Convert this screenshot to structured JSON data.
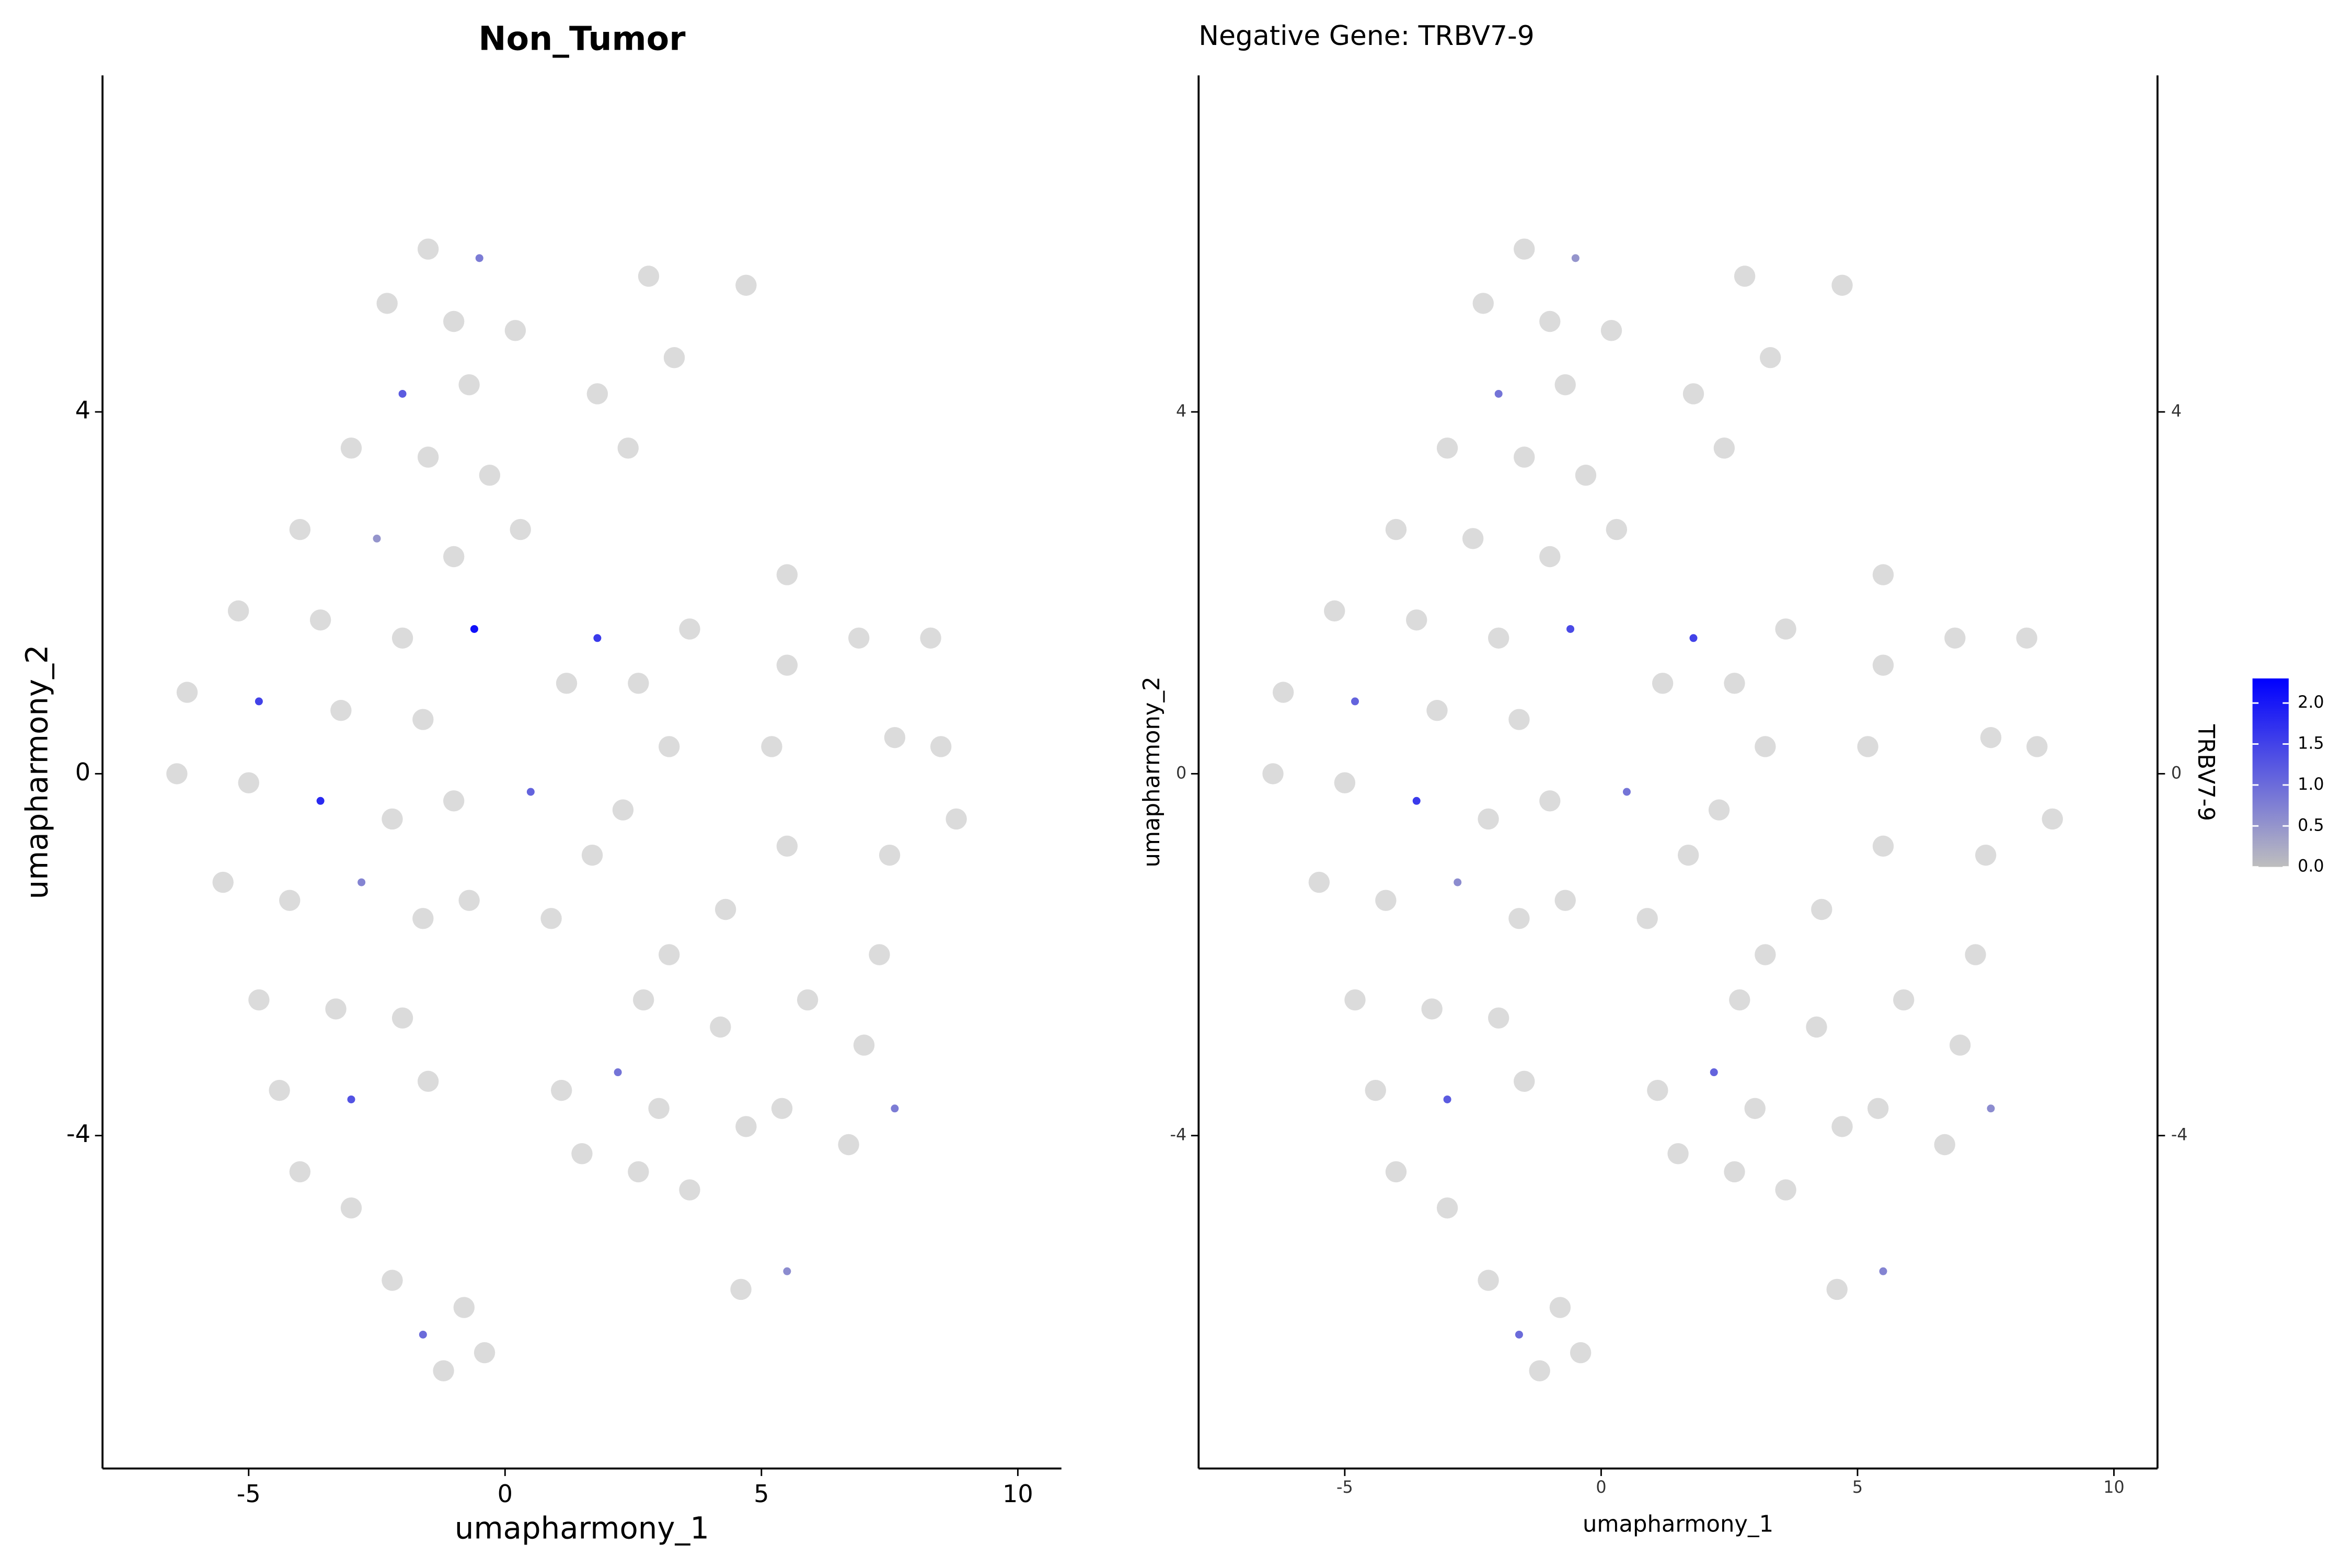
{
  "chart_data": [
    {
      "type": "scatter",
      "title": "Non_Tumor",
      "xlabel": "umapharmony_1",
      "ylabel": "umapharmony_2",
      "xlim": [
        -7.85,
        10.85
      ],
      "ylim": [
        -7.68,
        7.72
      ],
      "xticks": [
        -5,
        0,
        5,
        10
      ],
      "yticks": [
        -4,
        0,
        4
      ],
      "colors": [
        "#bebebe",
        "#0000ff"
      ],
      "colorlim": [
        0,
        2.3
      ],
      "right_axis": false,
      "x": [
        -1.5,
        -0.5,
        -2.3,
        -1.0,
        0.2,
        -2.0,
        -0.7,
        -3.0,
        -1.5,
        -0.3,
        -4.0,
        -2.5,
        -1.0,
        0.3,
        -5.2,
        -3.6,
        -2.0,
        -0.6,
        -6.2,
        -4.8,
        -3.2,
        -1.6,
        -6.4,
        -5.0,
        -3.6,
        -2.2,
        -1.0,
        -5.5,
        -4.2,
        -2.8,
        -1.6,
        -4.8,
        -3.3,
        -2.0,
        -4.4,
        -3.0,
        -1.5,
        -4.0,
        -3.0,
        -2.2,
        -1.6,
        -0.8,
        -1.2,
        -0.4,
        1.8,
        1.2,
        2.6,
        3.2,
        0.5,
        2.3,
        1.7,
        -0.7,
        0.9,
        3.6,
        2.7,
        2.2,
        3.0,
        1.5,
        2.6,
        3.6,
        1.1,
        3.2,
        2.8,
        4.7,
        2.4,
        3.3,
        1.8,
        5.5,
        5.5,
        5.5,
        5.2,
        5.9,
        5.4,
        4.7,
        5.5,
        4.6,
        4.3,
        4.2,
        8.3,
        8.5,
        7.6,
        8.8,
        7.5,
        6.9,
        7.6,
        7.0,
        6.7,
        7.3
      ],
      "values": [
        5.8,
        5.7,
        5.2,
        5.0,
        4.9,
        4.2,
        4.3,
        3.6,
        3.5,
        3.3,
        2.7,
        2.6,
        2.4,
        2.7,
        1.8,
        1.7,
        1.5,
        1.6,
        0.9,
        0.8,
        0.7,
        0.6,
        0.0,
        -0.1,
        -0.3,
        -0.5,
        -0.3,
        -1.2,
        -1.4,
        -1.2,
        -1.6,
        -2.5,
        -2.6,
        -2.7,
        -3.5,
        -3.6,
        -3.4,
        -4.4,
        -4.8,
        -5.6,
        -6.2,
        -5.9,
        -6.6,
        -6.4,
        1.5,
        1.0,
        1.0,
        0.3,
        -0.2,
        -0.4,
        -0.9,
        -1.4,
        -1.6,
        1.6,
        -2.5,
        -3.3,
        -3.7,
        -4.2,
        -4.4,
        -4.6,
        -3.5,
        -2.0,
        5.5,
        5.4,
        3.6,
        4.6,
        4.2,
        2.2,
        1.2,
        -0.8,
        0.3,
        -2.5,
        -3.7,
        -3.9,
        -5.5,
        -5.7,
        -1.5,
        -2.8,
        1.5,
        0.3,
        0.4,
        -0.5,
        -0.9,
        1.5,
        -3.7,
        -3.0,
        -4.1,
        -2.0
      ],
      "expression": [
        0,
        0.8,
        0,
        0,
        0,
        1.2,
        0,
        0,
        0,
        0,
        0,
        0.5,
        0,
        0,
        0,
        0,
        0,
        2.1,
        0,
        1.5,
        0,
        0,
        0,
        0,
        1.8,
        0,
        0,
        0,
        0,
        0.7,
        0,
        0,
        0,
        0,
        0,
        1.3,
        0,
        0,
        0,
        0,
        1.0,
        0,
        0,
        0,
        1.6,
        0,
        0,
        0,
        1.1,
        0,
        0,
        0,
        0,
        0,
        0,
        0.9,
        0,
        0,
        0,
        0,
        0,
        0,
        0,
        0,
        0,
        0,
        0,
        0,
        0,
        0,
        0,
        0,
        0,
        0,
        0.6,
        0,
        0,
        0,
        0,
        0,
        0,
        0,
        0,
        0,
        0.8,
        0,
        0,
        0
      ]
    },
    {
      "type": "scatter",
      "title": "Negative Gene: TRBV7-9",
      "xlabel": "umapharmony_1",
      "ylabel": "umapharmony_2",
      "xlim": [
        -7.85,
        10.85
      ],
      "ylim": [
        -7.68,
        7.72
      ],
      "xticks": [
        -5,
        0,
        5,
        10
      ],
      "yticks": [
        -4,
        0,
        4
      ],
      "colors": [
        "#bebebe",
        "#0000ff"
      ],
      "colorlim": [
        0,
        2.3
      ],
      "right_axis": true,
      "legend": {
        "title": "TRBV7-9",
        "ticks": [
          {
            "value": 0,
            "label": "0.0"
          },
          {
            "value": 0.5,
            "label": "0.5"
          },
          {
            "value": 1,
            "label": "1.0"
          },
          {
            "value": 1.5,
            "label": "1.5"
          },
          {
            "value": 2,
            "label": "2.0"
          }
        ]
      },
      "x": [
        -1.5,
        -0.5,
        -2.3,
        -1.0,
        0.2,
        -2.0,
        -0.7,
        -3.0,
        -1.5,
        -0.3,
        -4.0,
        -2.5,
        -1.0,
        0.3,
        -5.2,
        -3.6,
        -2.0,
        -0.6,
        -6.2,
        -4.8,
        -3.2,
        -1.6,
        -6.4,
        -5.0,
        -3.6,
        -2.2,
        -1.0,
        -5.5,
        -4.2,
        -2.8,
        -1.6,
        -4.8,
        -3.3,
        -2.0,
        -4.4,
        -3.0,
        -1.5,
        -4.0,
        -3.0,
        -2.2,
        -1.6,
        -0.8,
        -1.2,
        -0.4,
        1.8,
        1.2,
        2.6,
        3.2,
        0.5,
        2.3,
        1.7,
        -0.7,
        0.9,
        3.6,
        2.7,
        2.2,
        3.0,
        1.5,
        2.6,
        3.6,
        1.1,
        3.2,
        2.8,
        4.7,
        2.4,
        3.3,
        1.8,
        5.5,
        5.5,
        5.5,
        5.2,
        5.9,
        5.4,
        4.7,
        5.5,
        4.6,
        4.3,
        4.2,
        8.3,
        8.5,
        7.6,
        8.8,
        7.5,
        6.9,
        7.6,
        7.0,
        6.7,
        7.3
      ],
      "values": [
        5.8,
        5.7,
        5.2,
        5.0,
        4.9,
        4.2,
        4.3,
        3.6,
        3.5,
        3.3,
        2.7,
        2.6,
        2.4,
        2.7,
        1.8,
        1.7,
        1.5,
        1.6,
        0.9,
        0.8,
        0.7,
        0.6,
        0.0,
        -0.1,
        -0.3,
        -0.5,
        -0.3,
        -1.2,
        -1.4,
        -1.2,
        -1.6,
        -2.5,
        -2.6,
        -2.7,
        -3.5,
        -3.6,
        -3.4,
        -4.4,
        -4.8,
        -5.6,
        -6.2,
        -5.9,
        -6.6,
        -6.4,
        1.5,
        1.0,
        1.0,
        0.3,
        -0.2,
        -0.4,
        -0.9,
        -1.4,
        -1.6,
        1.6,
        -2.5,
        -3.3,
        -3.7,
        -4.2,
        -4.4,
        -4.6,
        -3.5,
        -2.0,
        5.5,
        5.4,
        3.6,
        4.6,
        4.2,
        2.2,
        1.2,
        -0.8,
        0.3,
        -2.5,
        -3.7,
        -3.9,
        -5.5,
        -5.7,
        -1.5,
        -2.8,
        1.5,
        0.3,
        0.4,
        -0.5,
        -0.9,
        1.5,
        -3.7,
        -3.0,
        -4.1,
        -2.0
      ],
      "expression": [
        0,
        0.5,
        0,
        0,
        0,
        0.9,
        0,
        0,
        0,
        0,
        0,
        0,
        0,
        0,
        0,
        0,
        0,
        1.4,
        0,
        1.1,
        0,
        0,
        0,
        0,
        1.6,
        0,
        0,
        0,
        0,
        0.6,
        0,
        0,
        0,
        0,
        0,
        1.2,
        0,
        0,
        0,
        0,
        1.0,
        0,
        0,
        0,
        1.5,
        0,
        0,
        0,
        0.9,
        0,
        0,
        0,
        0,
        0,
        0,
        1.1,
        0,
        0,
        0,
        0,
        0,
        0,
        0,
        0,
        0,
        0,
        0,
        0,
        0,
        0,
        0,
        0,
        0,
        0,
        0.7,
        0,
        0,
        0,
        0,
        0,
        0,
        0,
        0,
        0,
        0.6,
        0,
        0,
        0
      ]
    }
  ]
}
